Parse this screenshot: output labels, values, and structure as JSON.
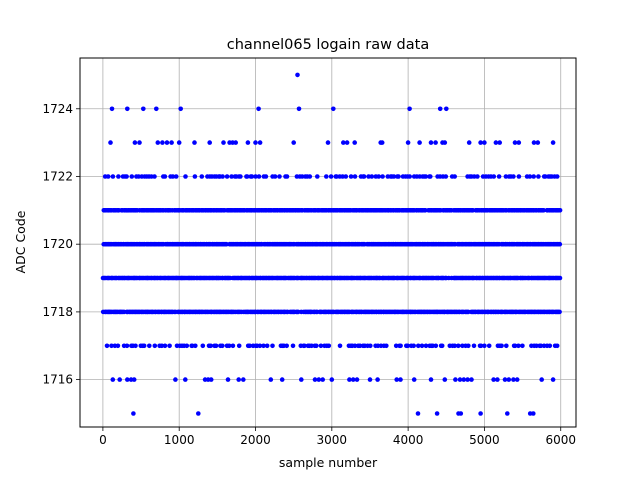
{
  "chart_data": {
    "type": "scatter",
    "title": "channel065 logain raw data",
    "xlabel": "sample number",
    "ylabel": "ADC Code",
    "xlim": [
      -300,
      6200
    ],
    "ylim": [
      1714.6,
      1725.5
    ],
    "xticks": [
      0,
      1000,
      2000,
      3000,
      4000,
      5000,
      6000
    ],
    "yticks": [
      1716,
      1718,
      1720,
      1722,
      1724
    ],
    "grid": true,
    "marker_color": "#0000ff",
    "n_samples": 6000,
    "levels": [
      {
        "y": 1718,
        "density": "dense"
      },
      {
        "y": 1719,
        "density": "dense"
      },
      {
        "y": 1720,
        "density": "dense"
      },
      {
        "y": 1721,
        "density": "dense"
      },
      {
        "y": 1722,
        "density": "medium"
      },
      {
        "y": 1717,
        "density": "medium"
      }
    ],
    "points": [
      {
        "x": 2550,
        "y": 1725
      },
      {
        "x": 120,
        "y": 1724
      },
      {
        "x": 320,
        "y": 1724
      },
      {
        "x": 530,
        "y": 1724
      },
      {
        "x": 700,
        "y": 1724
      },
      {
        "x": 1020,
        "y": 1724
      },
      {
        "x": 2040,
        "y": 1724
      },
      {
        "x": 2570,
        "y": 1724
      },
      {
        "x": 3020,
        "y": 1724
      },
      {
        "x": 4020,
        "y": 1724
      },
      {
        "x": 4420,
        "y": 1724
      },
      {
        "x": 4500,
        "y": 1724
      },
      {
        "x": 100,
        "y": 1723
      },
      {
        "x": 420,
        "y": 1723
      },
      {
        "x": 480,
        "y": 1723
      },
      {
        "x": 720,
        "y": 1723
      },
      {
        "x": 780,
        "y": 1723
      },
      {
        "x": 840,
        "y": 1723
      },
      {
        "x": 900,
        "y": 1723
      },
      {
        "x": 1000,
        "y": 1723
      },
      {
        "x": 1200,
        "y": 1723
      },
      {
        "x": 1400,
        "y": 1723
      },
      {
        "x": 1580,
        "y": 1723
      },
      {
        "x": 1660,
        "y": 1723
      },
      {
        "x": 1700,
        "y": 1723
      },
      {
        "x": 1740,
        "y": 1723
      },
      {
        "x": 1900,
        "y": 1723
      },
      {
        "x": 2000,
        "y": 1723
      },
      {
        "x": 2060,
        "y": 1723
      },
      {
        "x": 2500,
        "y": 1723
      },
      {
        "x": 2950,
        "y": 1723
      },
      {
        "x": 3150,
        "y": 1723
      },
      {
        "x": 3200,
        "y": 1723
      },
      {
        "x": 3300,
        "y": 1723
      },
      {
        "x": 3640,
        "y": 1723
      },
      {
        "x": 3660,
        "y": 1723
      },
      {
        "x": 4000,
        "y": 1723
      },
      {
        "x": 4150,
        "y": 1723
      },
      {
        "x": 4300,
        "y": 1723
      },
      {
        "x": 4360,
        "y": 1723
      },
      {
        "x": 4450,
        "y": 1723
      },
      {
        "x": 4480,
        "y": 1723
      },
      {
        "x": 4800,
        "y": 1723
      },
      {
        "x": 4950,
        "y": 1723
      },
      {
        "x": 5000,
        "y": 1723
      },
      {
        "x": 5150,
        "y": 1723
      },
      {
        "x": 5200,
        "y": 1723
      },
      {
        "x": 5400,
        "y": 1723
      },
      {
        "x": 5450,
        "y": 1723
      },
      {
        "x": 5650,
        "y": 1723
      },
      {
        "x": 5700,
        "y": 1723
      },
      {
        "x": 5900,
        "y": 1723
      },
      {
        "x": 130,
        "y": 1716
      },
      {
        "x": 220,
        "y": 1716
      },
      {
        "x": 320,
        "y": 1716
      },
      {
        "x": 370,
        "y": 1716
      },
      {
        "x": 410,
        "y": 1716
      },
      {
        "x": 950,
        "y": 1716
      },
      {
        "x": 1080,
        "y": 1716
      },
      {
        "x": 1340,
        "y": 1716
      },
      {
        "x": 1380,
        "y": 1716
      },
      {
        "x": 1420,
        "y": 1716
      },
      {
        "x": 1640,
        "y": 1716
      },
      {
        "x": 1780,
        "y": 1716
      },
      {
        "x": 1840,
        "y": 1716
      },
      {
        "x": 2200,
        "y": 1716
      },
      {
        "x": 2350,
        "y": 1716
      },
      {
        "x": 2600,
        "y": 1716
      },
      {
        "x": 2780,
        "y": 1716
      },
      {
        "x": 2830,
        "y": 1716
      },
      {
        "x": 2880,
        "y": 1716
      },
      {
        "x": 3000,
        "y": 1716
      },
      {
        "x": 3230,
        "y": 1716
      },
      {
        "x": 3280,
        "y": 1716
      },
      {
        "x": 3330,
        "y": 1716
      },
      {
        "x": 3500,
        "y": 1716
      },
      {
        "x": 3600,
        "y": 1716
      },
      {
        "x": 3850,
        "y": 1716
      },
      {
        "x": 3900,
        "y": 1716
      },
      {
        "x": 4080,
        "y": 1716
      },
      {
        "x": 4300,
        "y": 1716
      },
      {
        "x": 4480,
        "y": 1716
      },
      {
        "x": 4620,
        "y": 1716
      },
      {
        "x": 4680,
        "y": 1716
      },
      {
        "x": 4730,
        "y": 1716
      },
      {
        "x": 4780,
        "y": 1716
      },
      {
        "x": 4830,
        "y": 1716
      },
      {
        "x": 5120,
        "y": 1716
      },
      {
        "x": 5170,
        "y": 1716
      },
      {
        "x": 5270,
        "y": 1716
      },
      {
        "x": 5320,
        "y": 1716
      },
      {
        "x": 5380,
        "y": 1716
      },
      {
        "x": 5430,
        "y": 1716
      },
      {
        "x": 5750,
        "y": 1716
      },
      {
        "x": 5900,
        "y": 1716
      },
      {
        "x": 400,
        "y": 1715
      },
      {
        "x": 1250,
        "y": 1715
      },
      {
        "x": 4130,
        "y": 1715
      },
      {
        "x": 4380,
        "y": 1715
      },
      {
        "x": 4660,
        "y": 1715
      },
      {
        "x": 4690,
        "y": 1715
      },
      {
        "x": 4950,
        "y": 1715
      },
      {
        "x": 5300,
        "y": 1715
      },
      {
        "x": 5600,
        "y": 1715
      },
      {
        "x": 5640,
        "y": 1715
      }
    ]
  }
}
